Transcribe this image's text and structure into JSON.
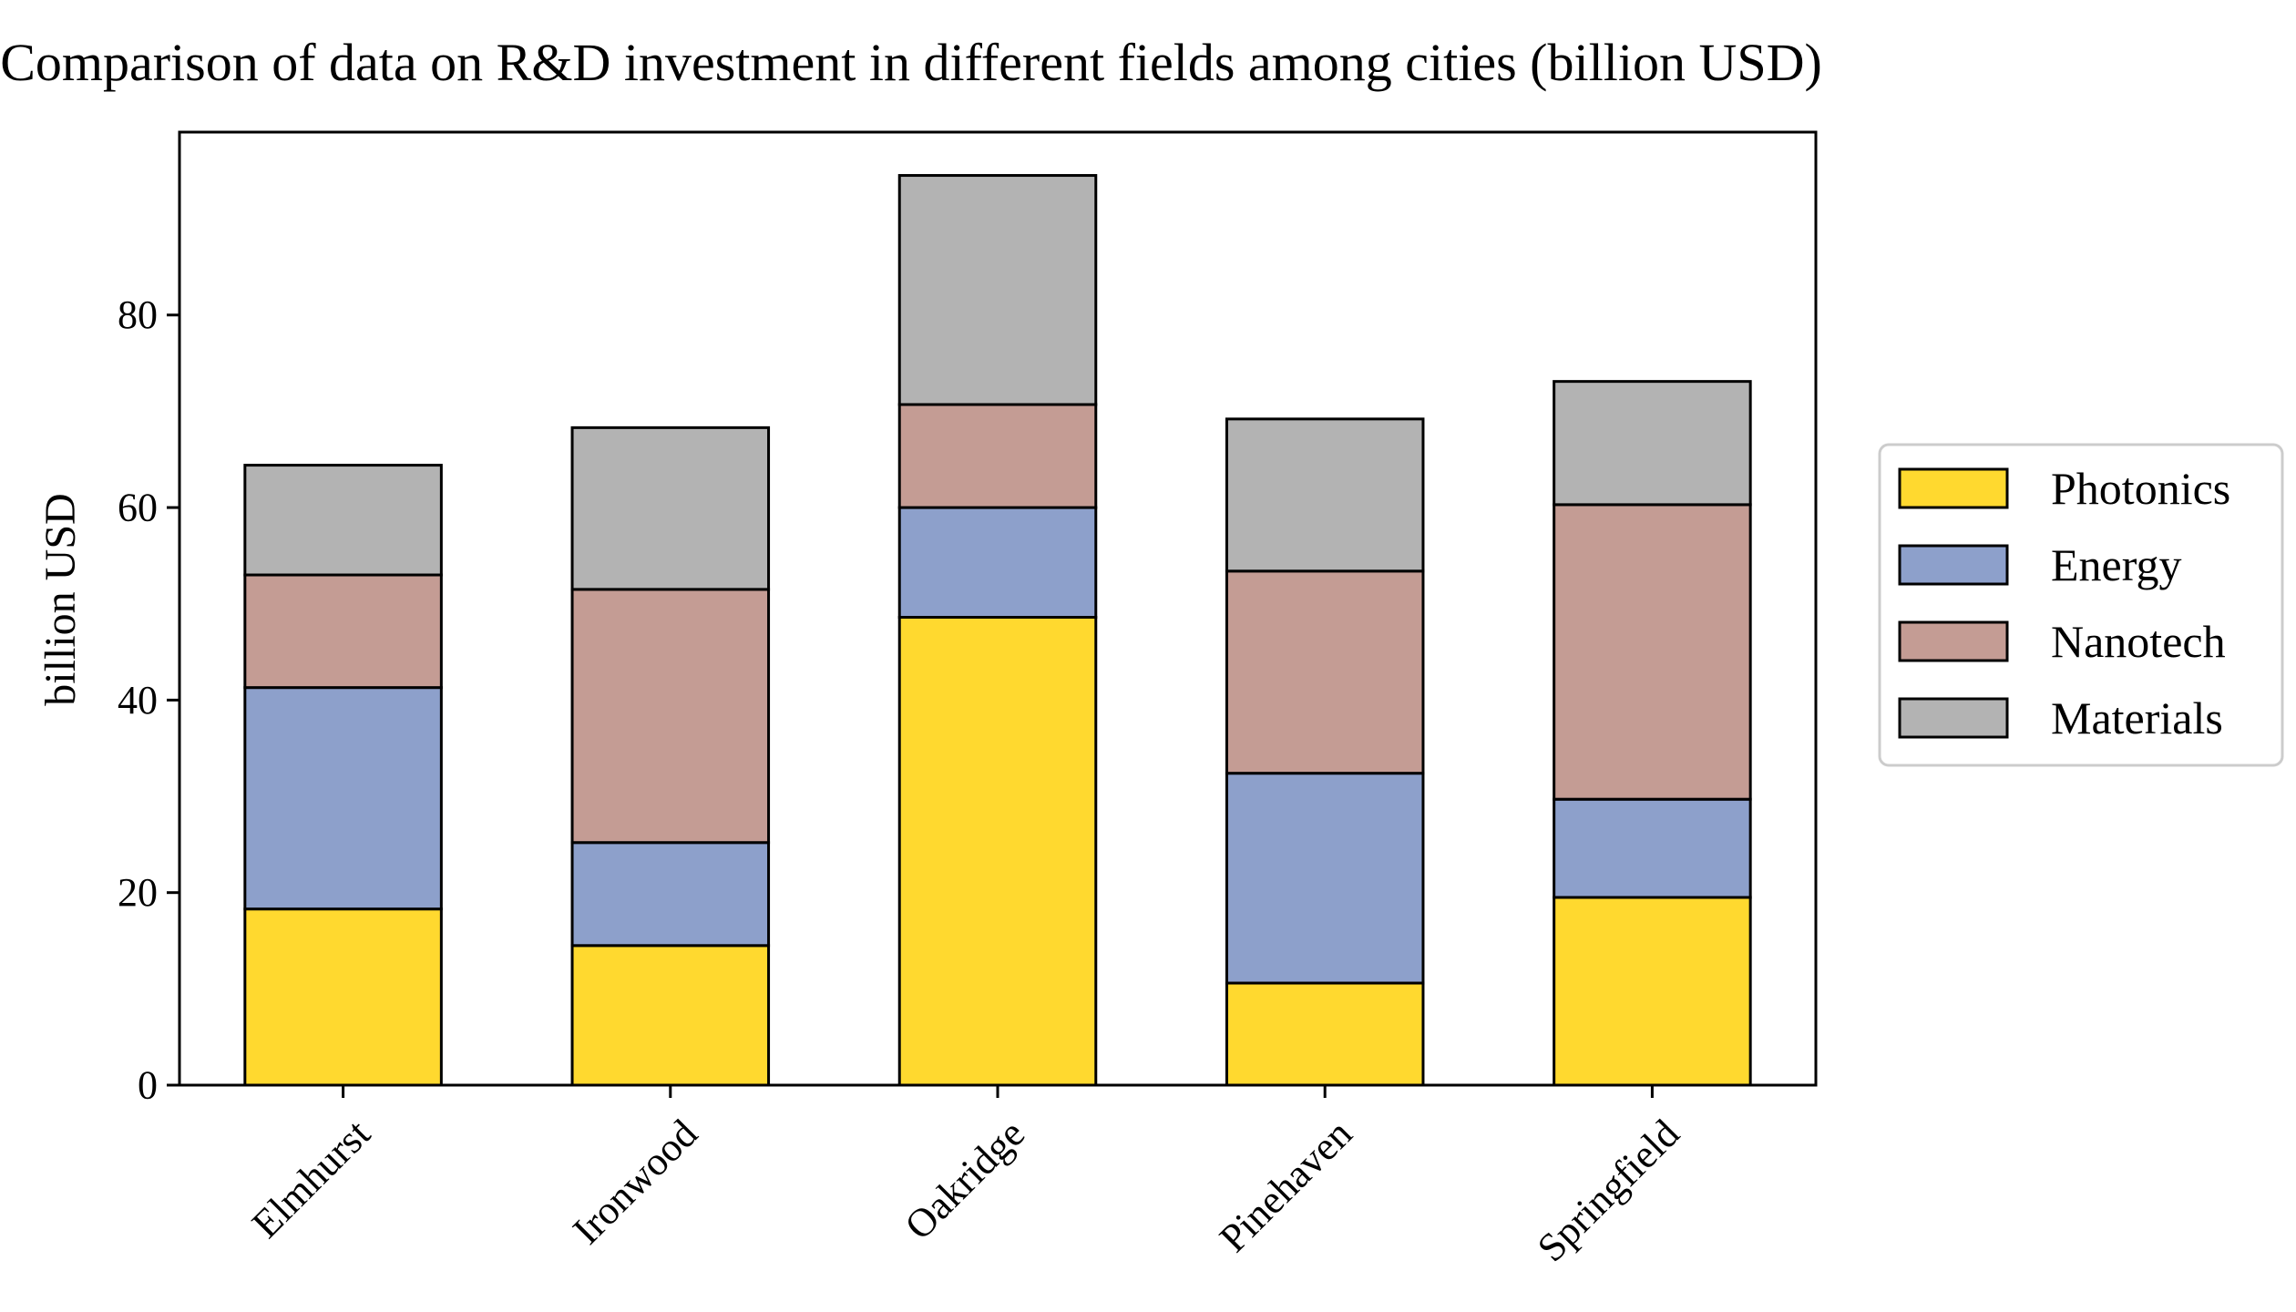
{
  "chart_data": {
    "type": "bar",
    "stacked": true,
    "title": "Comparison of data on R&D investment in different fields among cities (billion USD)",
    "xlabel": "",
    "ylabel": "billion USD",
    "ylim": [
      0,
      99
    ],
    "yticks": [
      0,
      20,
      40,
      60,
      80
    ],
    "categories": [
      "Elmhurst",
      "Ironwood",
      "Oakridge",
      "Pinehaven",
      "Springfield"
    ],
    "series": [
      {
        "name": "Photonics",
        "color": "#FFD92F",
        "values": [
          18.3,
          14.5,
          48.6,
          10.6,
          19.5
        ]
      },
      {
        "name": "Energy",
        "color": "#8DA0CB",
        "values": [
          23.0,
          10.7,
          11.4,
          21.8,
          10.2
        ]
      },
      {
        "name": "Nanotech",
        "color": "#C49C94",
        "values": [
          11.7,
          26.3,
          10.7,
          21.0,
          30.6
        ]
      },
      {
        "name": "Materials",
        "color": "#B3B3B3",
        "values": [
          11.4,
          16.8,
          23.8,
          15.8,
          12.8
        ]
      }
    ],
    "legend_position": "right",
    "grid": false
  }
}
